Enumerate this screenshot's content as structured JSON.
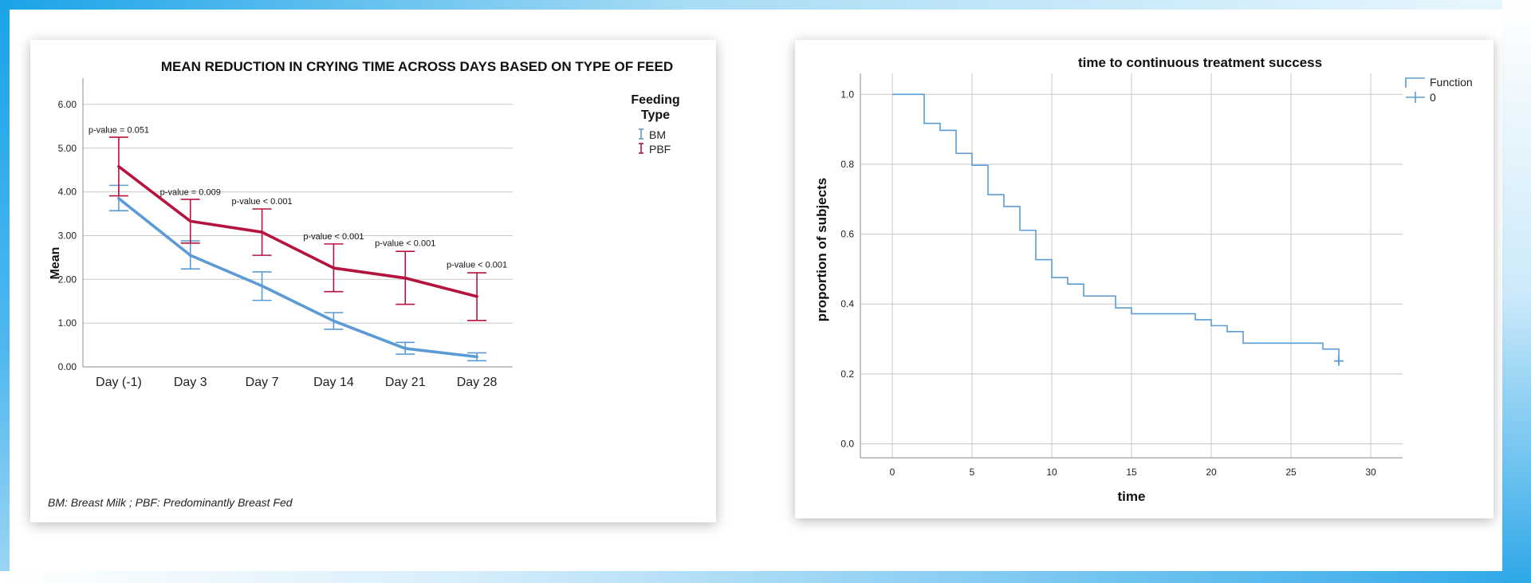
{
  "colors": {
    "bm": "#5b9bd5",
    "pbf": "#b5143e",
    "km": "#5b9bd5",
    "grid": "#c8c8c8",
    "axis": "#888888",
    "frame_blue": "#29a9e6"
  },
  "chart_data": [
    {
      "type": "line",
      "title": "MEAN REDUCTION IN CRYING TIME ACROSS DAYS BASED ON TYPE OF FEED",
      "xlabel": "",
      "ylabel": "Mean",
      "ylim": [
        0,
        6.6
      ],
      "yticks": [
        "0.00",
        "1.00",
        "2.00",
        "3.00",
        "4.00",
        "5.00",
        "6.00"
      ],
      "yticks_values": [
        0,
        1,
        2,
        3,
        4,
        5,
        6
      ],
      "categories": [
        "Day (-1)",
        "Day 3",
        "Day 7",
        "Day 14",
        "Day 21",
        "Day 28"
      ],
      "legend_title": "Feeding Type",
      "legend_position": "top-right",
      "grid": true,
      "series": [
        {
          "name": "BM",
          "color_key": "bm",
          "values": [
            3.85,
            2.55,
            1.85,
            1.05,
            0.42,
            0.23
          ],
          "error_low": [
            3.57,
            2.24,
            1.52,
            0.86,
            0.29,
            0.14
          ],
          "error_high": [
            4.15,
            2.88,
            2.17,
            1.24,
            0.56,
            0.32
          ]
        },
        {
          "name": "PBF",
          "color_key": "pbf",
          "values": [
            4.58,
            3.33,
            3.08,
            2.26,
            2.03,
            1.61
          ],
          "error_low": [
            3.91,
            2.83,
            2.55,
            1.72,
            1.43,
            1.06
          ],
          "error_high": [
            5.25,
            3.83,
            3.61,
            2.81,
            2.64,
            2.15
          ]
        }
      ],
      "annotations": [
        {
          "text": "p-value = 0.051",
          "category": "Day (-1)",
          "y": 5.35
        },
        {
          "text": "p-value = 0.009",
          "category": "Day 3",
          "y": 3.93
        },
        {
          "text": "p-value < 0.001",
          "category": "Day 7",
          "y": 3.72
        },
        {
          "text": "p-value < 0.001",
          "category": "Day 14",
          "y": 2.92
        },
        {
          "text": "p-value < 0.001",
          "category": "Day 21",
          "y": 2.76
        },
        {
          "text": "p-value < 0.001",
          "category": "Day 28",
          "y": 2.27
        }
      ],
      "footnote": "BM: Breast Milk ; PBF: Predominantly Breast Fed"
    },
    {
      "type": "line",
      "subtype": "step",
      "title": "time to continuous treatment success",
      "xlabel": "time",
      "ylabel": "proportion of subjects",
      "xlim": [
        -2,
        32
      ],
      "ylim": [
        -0.04,
        1.06
      ],
      "xticks": [
        0,
        5,
        10,
        15,
        20,
        25,
        30
      ],
      "yticks": [
        0.0,
        0.2,
        0.4,
        0.6,
        0.8,
        1.0
      ],
      "grid": true,
      "legend_title": "Function",
      "legend_position": "top-right",
      "series": [
        {
          "name": "0",
          "color_key": "km",
          "x": [
            0,
            2,
            3,
            4,
            5,
            6,
            7,
            8,
            9,
            10,
            11,
            12,
            14,
            15,
            19,
            20,
            21,
            22,
            27,
            28
          ],
          "y": [
            1.0,
            0.917,
            0.897,
            0.831,
            0.797,
            0.713,
            0.679,
            0.611,
            0.527,
            0.476,
            0.457,
            0.423,
            0.389,
            0.372,
            0.355,
            0.338,
            0.321,
            0.288,
            0.271,
            0.237
          ],
          "censored": [
            {
              "x": 28,
              "y": 0.237
            }
          ]
        }
      ]
    }
  ]
}
